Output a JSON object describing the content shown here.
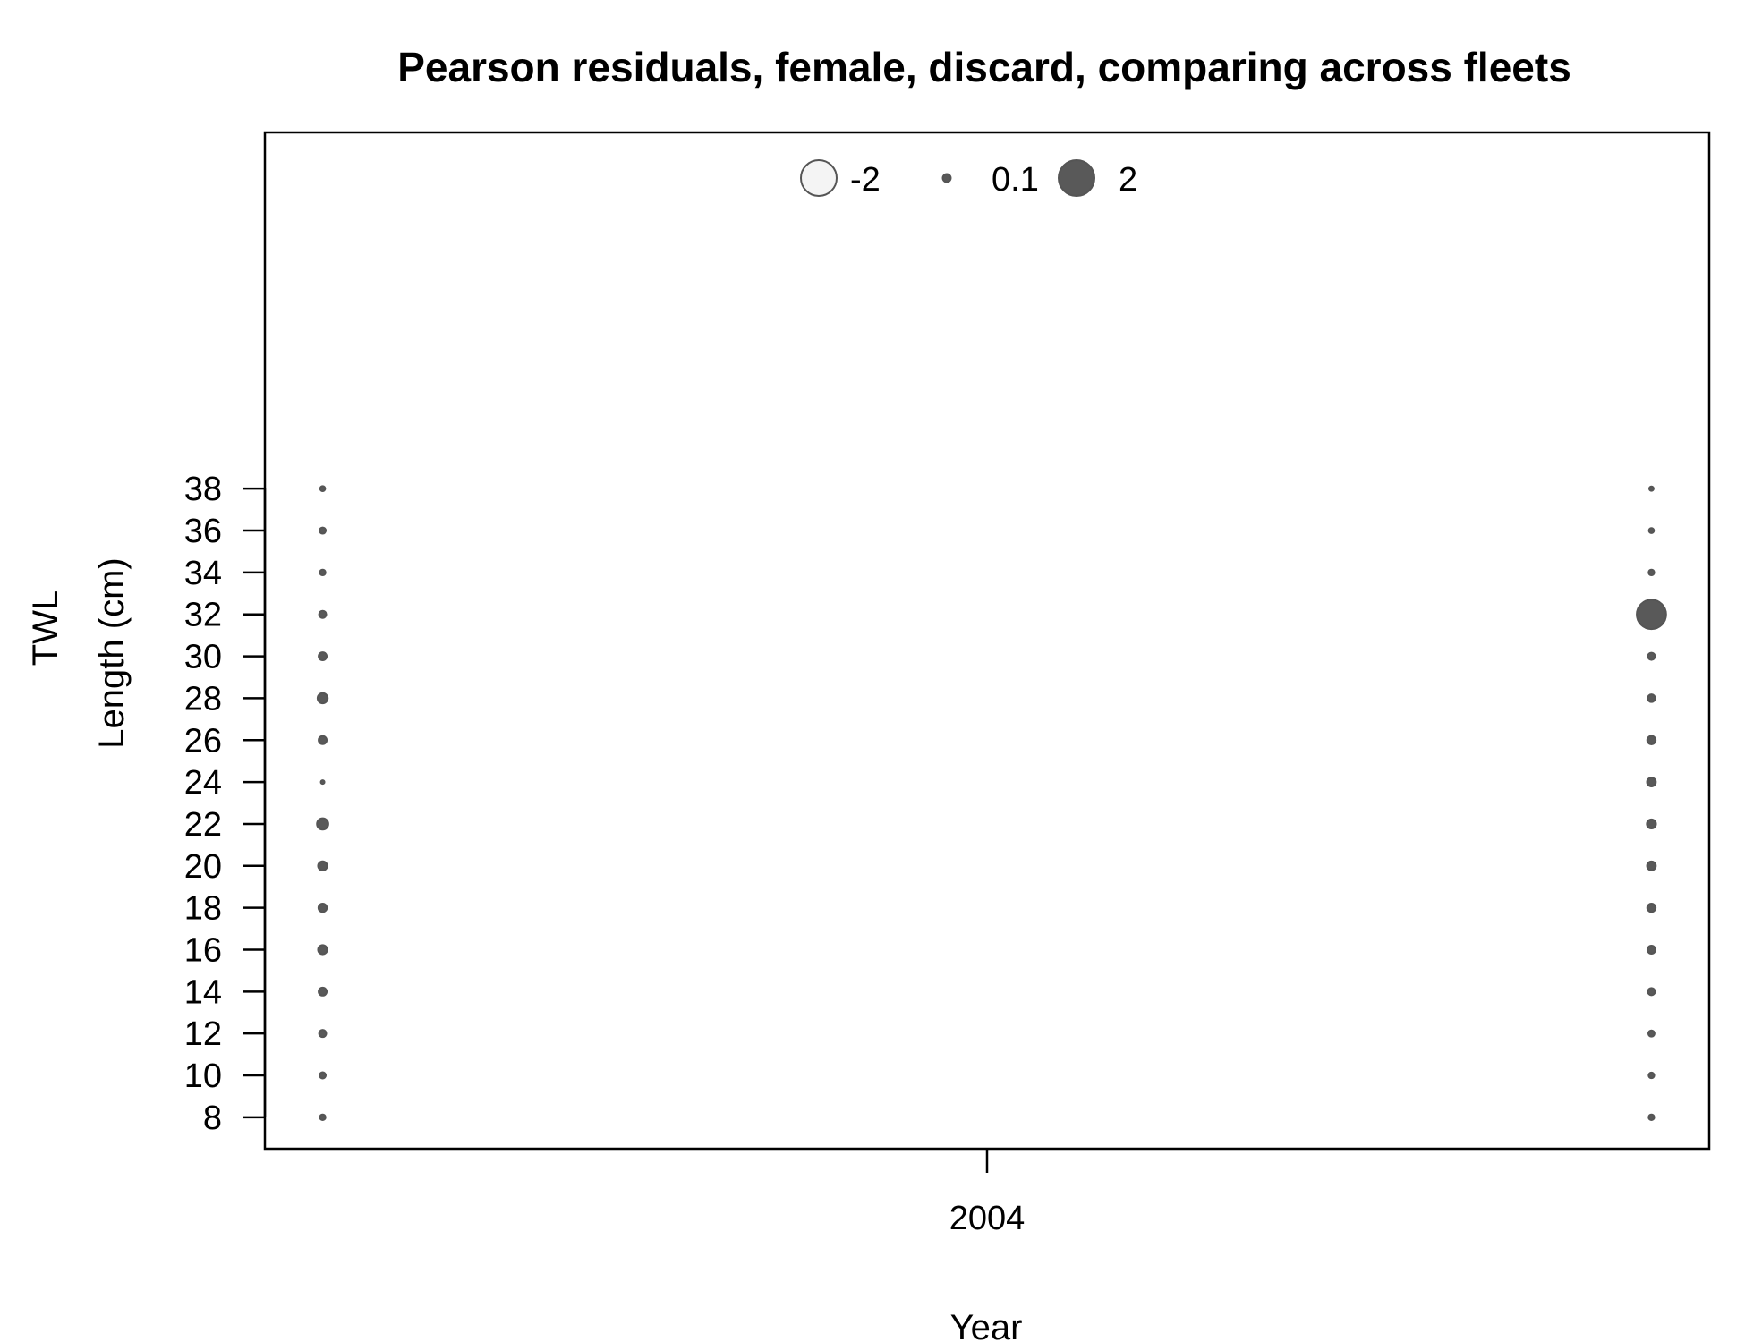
{
  "chart_data": {
    "type": "bubble",
    "title": "Pearson residuals, female, discard, comparing across fleets",
    "xlabel": "Year",
    "ylabel_lines": [
      "TWL",
      "Length (cm)"
    ],
    "x_ticks": [
      "2004"
    ],
    "y_ticks": [
      8,
      10,
      12,
      14,
      16,
      18,
      20,
      22,
      24,
      26,
      28,
      30,
      32,
      34,
      36,
      38
    ],
    "xlim": [
      2003.5,
      2004.5
    ],
    "ylim": [
      6.5,
      55
    ],
    "grid": false,
    "legend_position": "top",
    "legend": [
      {
        "label": "-2",
        "value": -2
      },
      {
        "label": "0.1",
        "value": 0.1
      },
      {
        "label": "2",
        "value": 2
      }
    ],
    "colors": {
      "negative_fill": "#f4f4f4",
      "positive_fill": "#595959",
      "stroke": "#555555"
    },
    "series": [
      {
        "x": 2003.54,
        "lengths": [
          8,
          10,
          12,
          14,
          16,
          18,
          20,
          22,
          24,
          26,
          28,
          30,
          32,
          34,
          36,
          38
        ],
        "residuals": [
          0.05,
          0.06,
          0.08,
          0.1,
          0.13,
          0.11,
          0.13,
          0.2,
          0.02,
          0.1,
          0.16,
          0.1,
          0.08,
          0.05,
          0.06,
          0.04
        ]
      },
      {
        "x": 2004.46,
        "lengths": [
          8,
          10,
          12,
          14,
          16,
          18,
          20,
          22,
          24,
          26,
          28,
          30,
          32,
          34,
          36,
          38
        ],
        "residuals": [
          0.05,
          0.05,
          0.06,
          0.08,
          0.1,
          0.11,
          0.12,
          0.13,
          0.12,
          0.11,
          0.09,
          0.08,
          1.34,
          0.05,
          0.04,
          0.03
        ]
      }
    ]
  }
}
